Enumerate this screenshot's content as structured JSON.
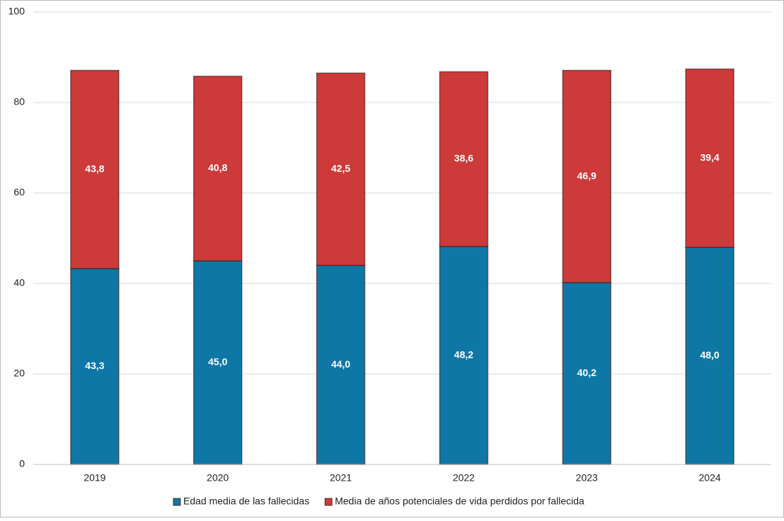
{
  "chart_data": {
    "type": "stacked_bar",
    "categories": [
      "2019",
      "2020",
      "2021",
      "2022",
      "2023",
      "2024"
    ],
    "series": [
      {
        "name": "Edad media de las fallecidas",
        "color": "#0f77a6",
        "values": [
          43.3,
          45.0,
          44.0,
          48.2,
          40.2,
          48.0
        ],
        "value_labels": [
          "43,3",
          "45,0",
          "44,0",
          "48,2",
          "40,2",
          "48,0"
        ]
      },
      {
        "name": "Media de años potenciales de vida perdidos por fallecida",
        "color": "#cc3a3a",
        "values": [
          43.8,
          40.8,
          42.5,
          38.6,
          46.9,
          39.4
        ],
        "value_labels": [
          "43,8",
          "40,8",
          "42,5",
          "38,6",
          "46,9",
          "39,4"
        ]
      }
    ],
    "ylim": [
      0,
      100
    ],
    "yticks": [
      0,
      20,
      40,
      60,
      80,
      100
    ],
    "grid": true,
    "legend": "bottom"
  }
}
